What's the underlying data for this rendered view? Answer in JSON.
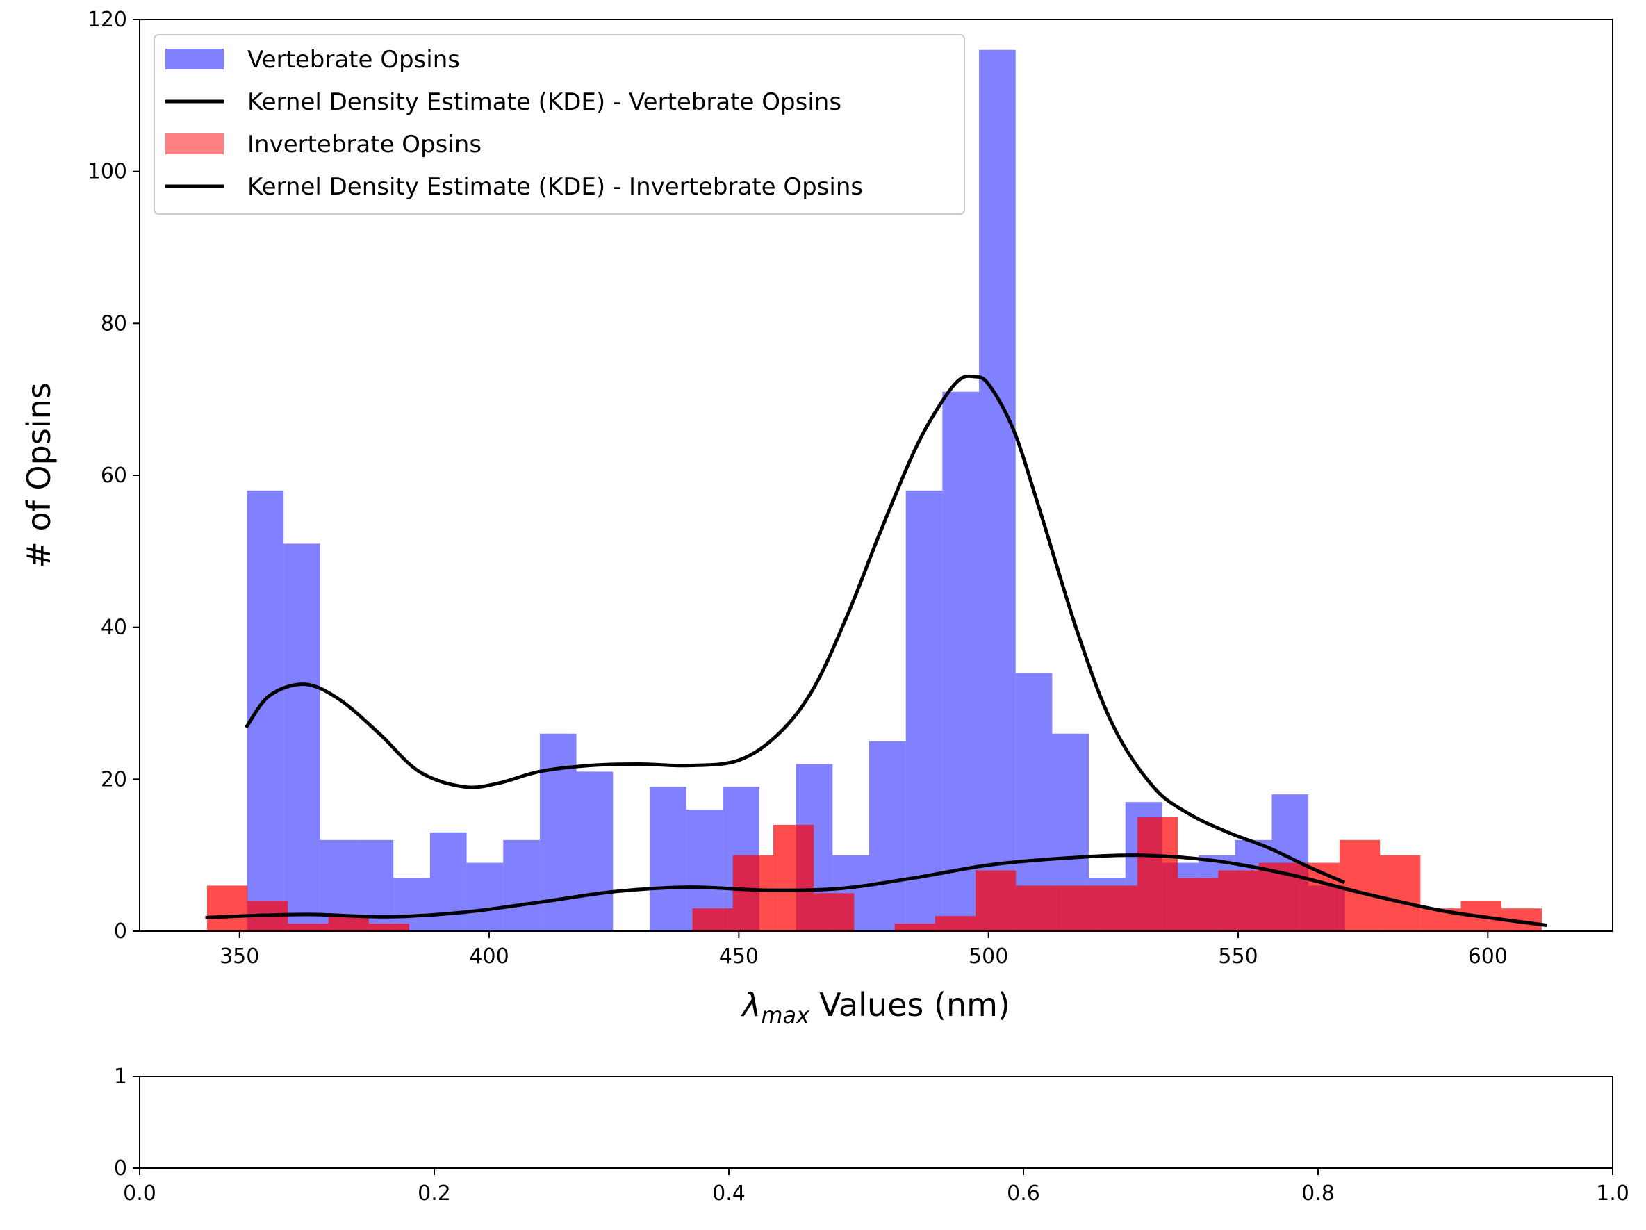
{
  "chart_data": [
    {
      "type": "bar",
      "xlabel": "Values (nm)",
      "xlabel_symbol": "λ",
      "xlabel_subscript": "max",
      "ylabel": "# of Opsins",
      "xlim": [
        330,
        625
      ],
      "ylim": [
        0,
        120
      ],
      "xticks": [
        350,
        400,
        450,
        500,
        550,
        600
      ],
      "yticks": [
        0,
        20,
        40,
        60,
        80,
        100,
        120
      ],
      "grid": false,
      "legend_position": "top-left",
      "legend": [
        {
          "label": "Vertebrate Opsins",
          "kind": "patch",
          "color": "#4b4bff"
        },
        {
          "label": "Kernel Density Estimate (KDE) - Vertebrate Opsins",
          "kind": "line",
          "color": "#000000"
        },
        {
          "label": "Invertebrate Opsins",
          "kind": "patch",
          "color": "#ff4b4b"
        },
        {
          "label": "Kernel Density Estimate (KDE) - Invertebrate Opsins",
          "kind": "line",
          "color": "#000000"
        }
      ],
      "series": [
        {
          "name": "Vertebrate Opsins",
          "kind": "histogram",
          "color": "#4b4bff",
          "opacity": 0.7,
          "bin_start": 351.5,
          "bin_width": 7.33,
          "values": [
            58,
            51,
            12,
            12,
            7,
            13,
            9,
            12,
            26,
            21,
            0,
            19,
            16,
            19,
            0,
            22,
            10,
            25,
            58,
            71,
            116,
            34,
            26,
            7,
            17,
            9,
            10,
            12,
            18,
            6
          ]
        },
        {
          "name": "Invertebrate Opsins",
          "kind": "histogram",
          "color": "#ff0000",
          "opacity": 0.7,
          "bin_start": 343.5,
          "bin_width": 8.1,
          "values": [
            6,
            4,
            1,
            2,
            1,
            0,
            0,
            0,
            0,
            0,
            0,
            0,
            3,
            10,
            14,
            5,
            0,
            1,
            2,
            8,
            6,
            6,
            6,
            15,
            7,
            8,
            9,
            9,
            12,
            10,
            3,
            4,
            3,
            0,
            0,
            0,
            0,
            0,
            0,
            0,
            0,
            0,
            0,
            0,
            0,
            0,
            0,
            0,
            0,
            0,
            0,
            0,
            1,
            0,
            0
          ]
        },
        {
          "name": "Kernel Density Estimate (KDE) - Vertebrate Opsins",
          "kind": "line",
          "color": "#000000",
          "x": [
            351.5,
            356,
            363,
            370,
            378,
            386,
            395,
            402,
            410,
            420,
            430,
            440,
            450,
            458,
            465,
            472,
            478,
            485,
            490,
            494,
            497,
            500,
            505,
            510,
            518,
            525,
            533,
            540,
            548,
            556,
            564,
            571
          ],
          "y": [
            27,
            31,
            32.5,
            30.5,
            26,
            21,
            19,
            19.5,
            21,
            21.8,
            22,
            21.8,
            22.5,
            26,
            32,
            42,
            52,
            63,
            69,
            72.5,
            73,
            72,
            66,
            56,
            39,
            27,
            19,
            15.5,
            13,
            11,
            8.5,
            6.5
          ]
        },
        {
          "name": "Kernel Density Estimate (KDE) - Invertebrate Opsins",
          "kind": "line",
          "color": "#000000",
          "x": [
            343.5,
            355,
            365,
            380,
            395,
            410,
            425,
            440,
            455,
            470,
            485,
            500,
            515,
            530,
            545,
            560,
            575,
            590,
            600,
            611.5
          ],
          "y": [
            1.8,
            2.1,
            2.2,
            1.9,
            2.5,
            3.8,
            5.2,
            5.8,
            5.4,
            5.6,
            7.0,
            8.7,
            9.6,
            10.0,
            9.3,
            7.5,
            5.0,
            2.8,
            1.8,
            0.8
          ]
        }
      ]
    },
    {
      "type": "scatter",
      "xlim": [
        0.0,
        1.0
      ],
      "ylim": [
        0,
        1
      ],
      "xticks": [
        "0.0",
        "0.2",
        "0.4",
        "0.6",
        "0.8",
        "1.0"
      ],
      "yticks": [
        "0",
        "1"
      ],
      "series": []
    }
  ]
}
